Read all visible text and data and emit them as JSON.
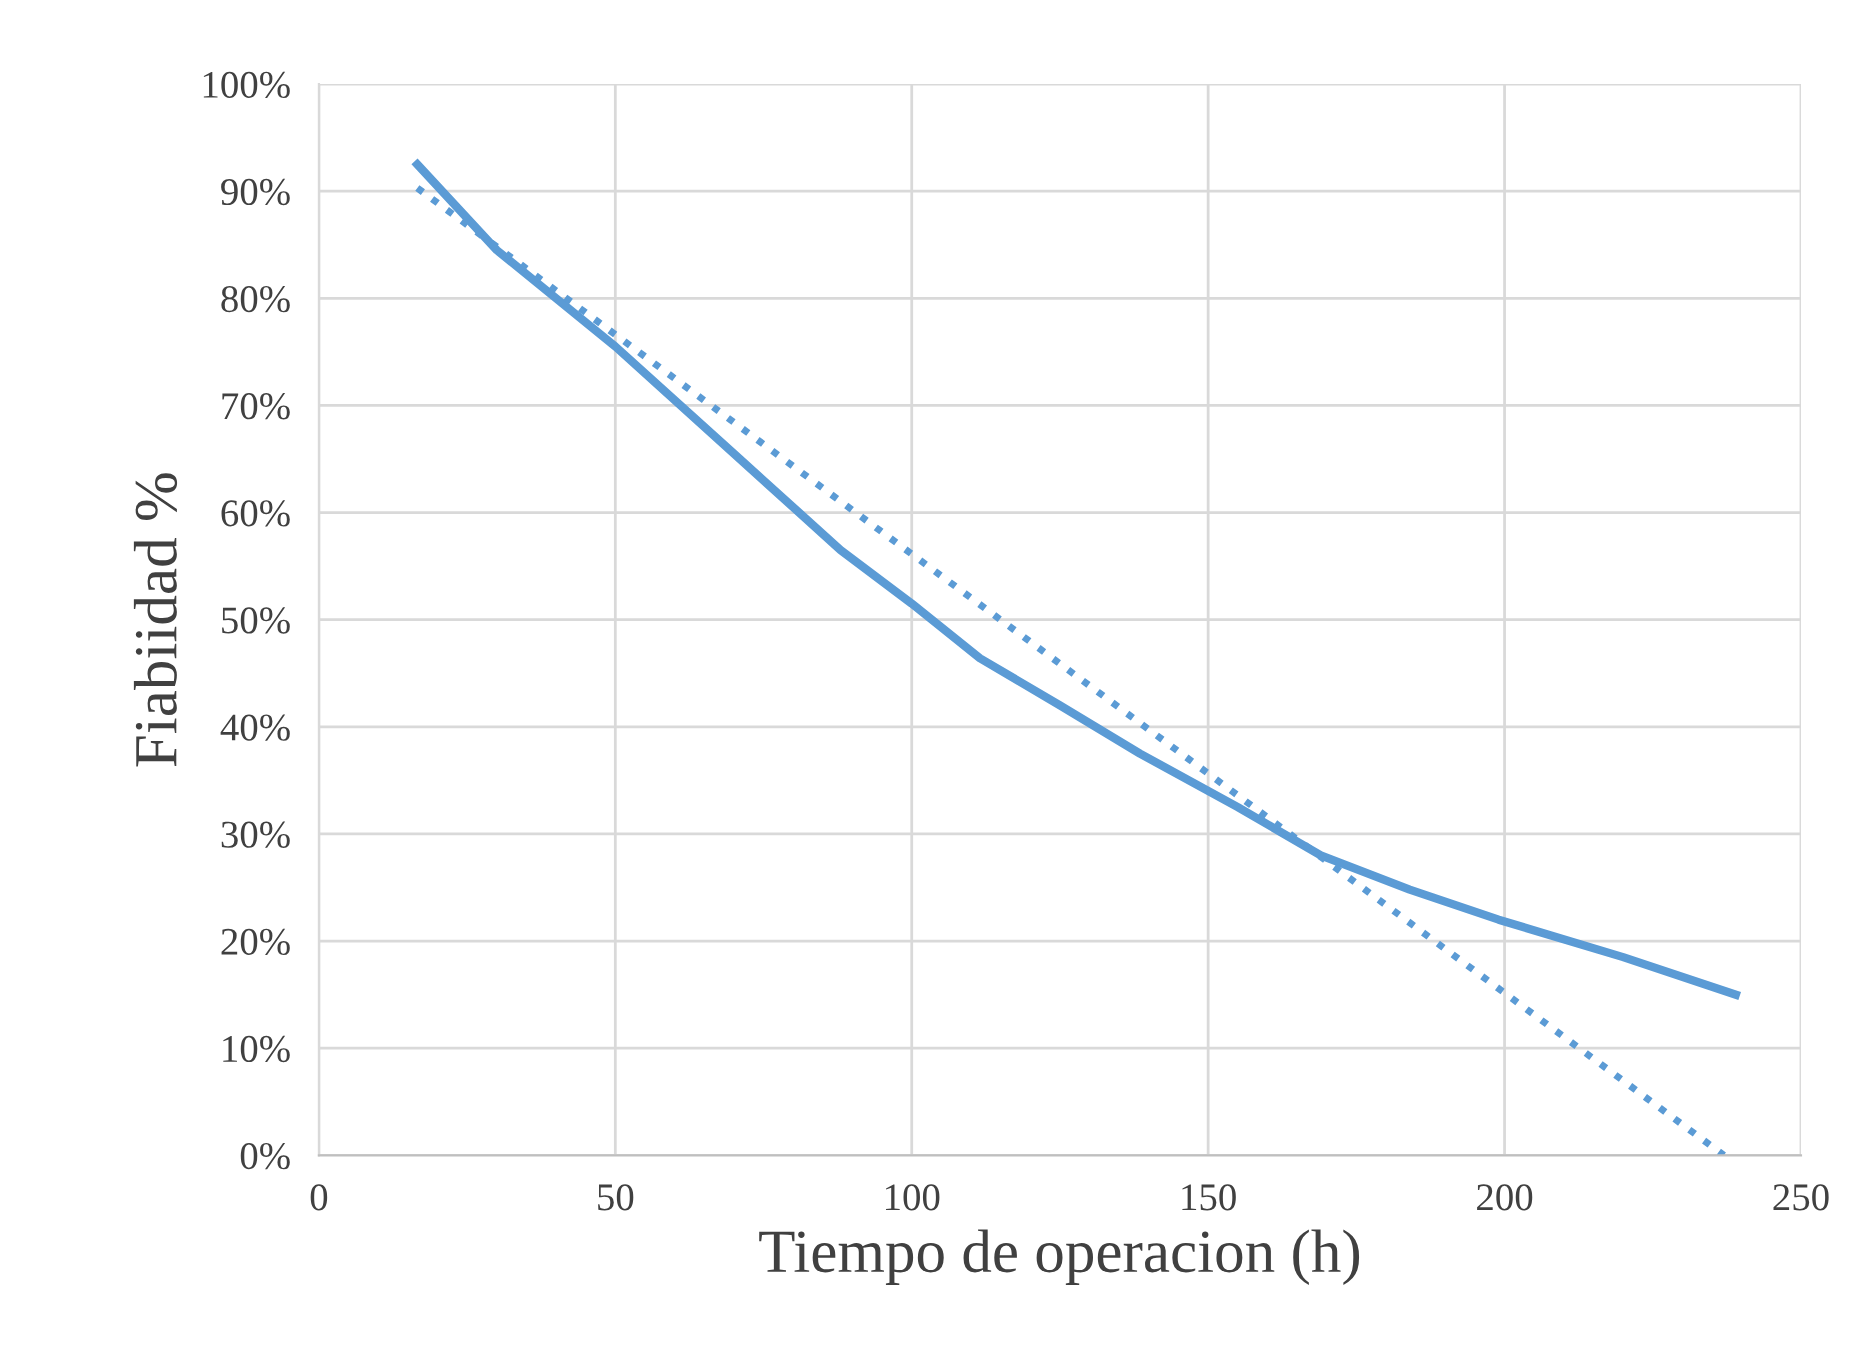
{
  "chart_data": {
    "type": "line",
    "xlabel": "Tiempo de operacion (h)",
    "ylabel": "Fiabiidad %",
    "series": [
      {
        "color": "#5b9bd5",
        "line_style": "solid",
        "x": [
          16.6,
          30,
          50,
          70,
          88,
          100,
          111.5,
          125,
          138.5,
          155,
          169,
          184,
          199,
          220,
          239
        ],
        "values": [
          92.5,
          84.5,
          75.5,
          65.5,
          56.5,
          51.5,
          46.4,
          42,
          37.5,
          32.5,
          28,
          24.8,
          22,
          18.5,
          15
        ]
      },
      {
        "color": "#5b9bd5",
        "line_style": "dotted",
        "x": [
          16.6,
          237
        ],
        "values": [
          90.3,
          0
        ]
      }
    ],
    "xlim": [
      0,
      250
    ],
    "xticks": [
      0,
      50,
      100,
      150,
      200,
      250
    ],
    "ylim": [
      0,
      100
    ],
    "yticks": [
      {
        "value": 0,
        "label": "0%"
      },
      {
        "value": 10,
        "label": "10%"
      },
      {
        "value": 20,
        "label": "20%"
      },
      {
        "value": 30,
        "label": "30%"
      },
      {
        "value": 40,
        "label": "40%"
      },
      {
        "value": 50,
        "label": "50%"
      },
      {
        "value": 60,
        "label": "60%"
      },
      {
        "value": 70,
        "label": "70%"
      },
      {
        "value": 80,
        "label": "80%"
      },
      {
        "value": 90,
        "label": "90%"
      },
      {
        "value": 100,
        "label": "100%"
      }
    ],
    "grid": true,
    "legend": false
  }
}
